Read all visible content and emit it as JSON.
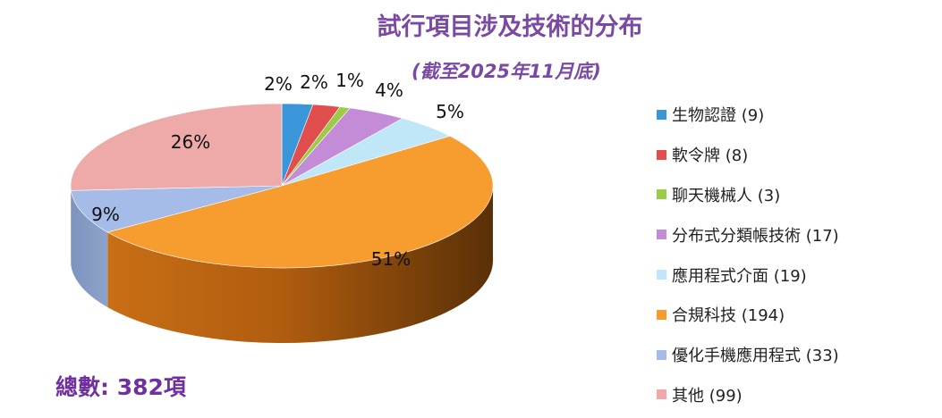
{
  "title": "試行項目涉及技術的分布",
  "subtitle": "(截至2025年11月底)",
  "total_label": "總數: 382項",
  "chart_data": {
    "type": "pie",
    "style": "3d",
    "title": "試行項目涉及技術的分布",
    "subtitle": "(截至2025年11月底)",
    "total": 382,
    "legend_position": "right",
    "slices": [
      {
        "label": "生物認證",
        "count": 9,
        "percent_label": "2%",
        "color": "#3b95d9"
      },
      {
        "label": "軟令牌",
        "count": 8,
        "percent_label": "2%",
        "color": "#e04e4e"
      },
      {
        "label": "聊天機械人",
        "count": 3,
        "percent_label": "1%",
        "color": "#9ccc45"
      },
      {
        "label": "分布式分類帳技術",
        "count": 17,
        "percent_label": "4%",
        "color": "#c48bd6"
      },
      {
        "label": "應用程式介面",
        "count": 19,
        "percent_label": "5%",
        "color": "#bfe7f7"
      },
      {
        "label": "合規科技",
        "count": 194,
        "percent_label": "51%",
        "color": "#f79c2f"
      },
      {
        "label": "優化手機應用程式",
        "count": 33,
        "percent_label": "9%",
        "color": "#a6bce8"
      },
      {
        "label": "其他",
        "count": 99,
        "percent_label": "26%",
        "color": "#eeaaa9"
      }
    ],
    "legend_entries": [
      "生物認證 (9)",
      "軟令牌 (8)",
      "聊天機械人 (3)",
      "分布式分類帳技術 (17)",
      "應用程式介面 (19)",
      "合規科技 (194)",
      "優化手機應用程式 (33)",
      "其他 (99)"
    ]
  }
}
